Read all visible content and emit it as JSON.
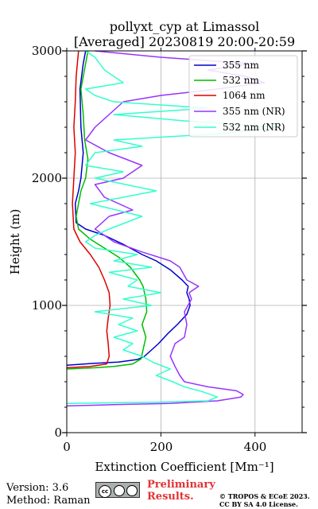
{
  "chart_data": {
    "type": "line",
    "title": "pollyxt_cyp at Limassol",
    "subtitle": "[Averaged] 20230819 20:00-20:59",
    "xlabel": "Extinction Coefficient [Mm⁻¹]",
    "ylabel": "Height (m)",
    "xlim": [
      0,
      500
    ],
    "ylim": [
      0,
      3000
    ],
    "xticks": [
      "0",
      "200",
      "400"
    ],
    "yticks": [
      "0",
      "1000",
      "2000",
      "3000"
    ],
    "grid": true,
    "legend_position": "top-right",
    "series": [
      {
        "name": "355 nm",
        "color": "#0000cc",
        "points": [
          [
            0,
            530
          ],
          [
            60,
            545
          ],
          [
            110,
            555
          ],
          [
            150,
            575
          ],
          [
            165,
            600
          ],
          [
            180,
            650
          ],
          [
            195,
            700
          ],
          [
            215,
            780
          ],
          [
            235,
            850
          ],
          [
            255,
            930
          ],
          [
            262,
            1000
          ],
          [
            260,
            1050
          ],
          [
            255,
            1100
          ],
          [
            258,
            1150
          ],
          [
            245,
            1200
          ],
          [
            220,
            1280
          ],
          [
            190,
            1350
          ],
          [
            160,
            1400
          ],
          [
            120,
            1480
          ],
          [
            80,
            1550
          ],
          [
            40,
            1600
          ],
          [
            20,
            1650
          ],
          [
            18,
            1800
          ],
          [
            25,
            1900
          ],
          [
            30,
            2000
          ],
          [
            35,
            2200
          ],
          [
            30,
            2400
          ],
          [
            28,
            2700
          ],
          [
            35,
            2900
          ],
          [
            40,
            3000
          ]
        ]
      },
      {
        "name": "532 nm",
        "color": "#00bb00",
        "points": [
          [
            0,
            500
          ],
          [
            60,
            510
          ],
          [
            100,
            520
          ],
          [
            140,
            540
          ],
          [
            158,
            580
          ],
          [
            162,
            650
          ],
          [
            168,
            750
          ],
          [
            160,
            850
          ],
          [
            170,
            950
          ],
          [
            168,
            1050
          ],
          [
            162,
            1150
          ],
          [
            155,
            1200
          ],
          [
            135,
            1300
          ],
          [
            110,
            1380
          ],
          [
            80,
            1450
          ],
          [
            50,
            1520
          ],
          [
            25,
            1600
          ],
          [
            20,
            1700
          ],
          [
            25,
            1800
          ],
          [
            30,
            1900
          ],
          [
            40,
            2000
          ],
          [
            45,
            2150
          ],
          [
            38,
            2300
          ],
          [
            35,
            2500
          ],
          [
            30,
            2700
          ],
          [
            40,
            2900
          ],
          [
            45,
            3000
          ]
        ]
      },
      {
        "name": "1064 nm",
        "color": "#dd0000",
        "points": [
          [
            0,
            510
          ],
          [
            50,
            520
          ],
          [
            85,
            540
          ],
          [
            90,
            600
          ],
          [
            88,
            700
          ],
          [
            85,
            800
          ],
          [
            88,
            900
          ],
          [
            92,
            1000
          ],
          [
            90,
            1100
          ],
          [
            80,
            1200
          ],
          [
            68,
            1300
          ],
          [
            50,
            1400
          ],
          [
            28,
            1500
          ],
          [
            15,
            1600
          ],
          [
            12,
            1800
          ],
          [
            15,
            2000
          ],
          [
            18,
            2200
          ],
          [
            15,
            2400
          ],
          [
            18,
            2600
          ],
          [
            20,
            2800
          ],
          [
            25,
            3000
          ]
        ]
      },
      {
        "name": "355 nm (NR)",
        "color": "#9933ff",
        "points": [
          [
            0,
            210
          ],
          [
            100,
            220
          ],
          [
            220,
            230
          ],
          [
            320,
            250
          ],
          [
            370,
            280
          ],
          [
            375,
            300
          ],
          [
            360,
            330
          ],
          [
            300,
            360
          ],
          [
            250,
            400
          ],
          [
            240,
            450
          ],
          [
            230,
            520
          ],
          [
            220,
            600
          ],
          [
            230,
            700
          ],
          [
            250,
            750
          ],
          [
            255,
            850
          ],
          [
            250,
            950
          ],
          [
            265,
            1050
          ],
          [
            260,
            1100
          ],
          [
            280,
            1150
          ],
          [
            255,
            1200
          ],
          [
            240,
            1300
          ],
          [
            220,
            1350
          ],
          [
            160,
            1420
          ],
          [
            100,
            1500
          ],
          [
            60,
            1600
          ],
          [
            90,
            1700
          ],
          [
            140,
            1750
          ],
          [
            80,
            1850
          ],
          [
            60,
            1950
          ],
          [
            120,
            2000
          ],
          [
            160,
            2100
          ],
          [
            90,
            2200
          ],
          [
            40,
            2300
          ],
          [
            60,
            2400
          ],
          [
            90,
            2500
          ],
          [
            120,
            2600
          ],
          [
            200,
            2650
          ],
          [
            320,
            2700
          ],
          [
            420,
            2750
          ],
          [
            380,
            2800
          ],
          [
            300,
            2850
          ],
          [
            390,
            2900
          ],
          [
            200,
            2950
          ],
          [
            60,
            3000
          ]
        ]
      },
      {
        "name": "532 nm (NR)",
        "color": "#33ffcc",
        "points": [
          [
            0,
            230
          ],
          [
            200,
            240
          ],
          [
            300,
            250
          ],
          [
            320,
            280
          ],
          [
            290,
            320
          ],
          [
            250,
            360
          ],
          [
            225,
            400
          ],
          [
            190,
            450
          ],
          [
            220,
            500
          ],
          [
            185,
            550
          ],
          [
            160,
            600
          ],
          [
            120,
            650
          ],
          [
            140,
            700
          ],
          [
            100,
            750
          ],
          [
            150,
            800
          ],
          [
            110,
            850
          ],
          [
            140,
            900
          ],
          [
            60,
            950
          ],
          [
            180,
            1000
          ],
          [
            120,
            1050
          ],
          [
            200,
            1100
          ],
          [
            130,
            1150
          ],
          [
            150,
            1200
          ],
          [
            90,
            1260
          ],
          [
            180,
            1300
          ],
          [
            100,
            1350
          ],
          [
            150,
            1400
          ],
          [
            60,
            1450
          ],
          [
            40,
            1500
          ],
          [
            60,
            1550
          ],
          [
            90,
            1600
          ],
          [
            160,
            1700
          ],
          [
            50,
            1800
          ],
          [
            120,
            1850
          ],
          [
            190,
            1900
          ],
          [
            60,
            2000
          ],
          [
            120,
            2050
          ],
          [
            40,
            2100
          ],
          [
            60,
            2200
          ],
          [
            160,
            2250
          ],
          [
            100,
            2300
          ],
          [
            330,
            2350
          ],
          [
            450,
            2400
          ],
          [
            250,
            2450
          ],
          [
            100,
            2500
          ],
          [
            300,
            2550
          ],
          [
            100,
            2600
          ],
          [
            60,
            2650
          ],
          [
            40,
            2700
          ],
          [
            120,
            2750
          ],
          [
            80,
            2850
          ],
          [
            60,
            2950
          ],
          [
            40,
            3000
          ]
        ]
      }
    ]
  },
  "footer": {
    "version": "Version: 3.6",
    "method": "Method: Raman",
    "preliminary_line1": "Preliminary",
    "preliminary_line2": "Results.",
    "copyright_line1": "© TROPOS & ECoE 2023.",
    "copyright_line2": "CC BY SA 4.0 License."
  },
  "colors": {
    "preliminary": "#e33333",
    "grid": "#b0b0b0"
  }
}
